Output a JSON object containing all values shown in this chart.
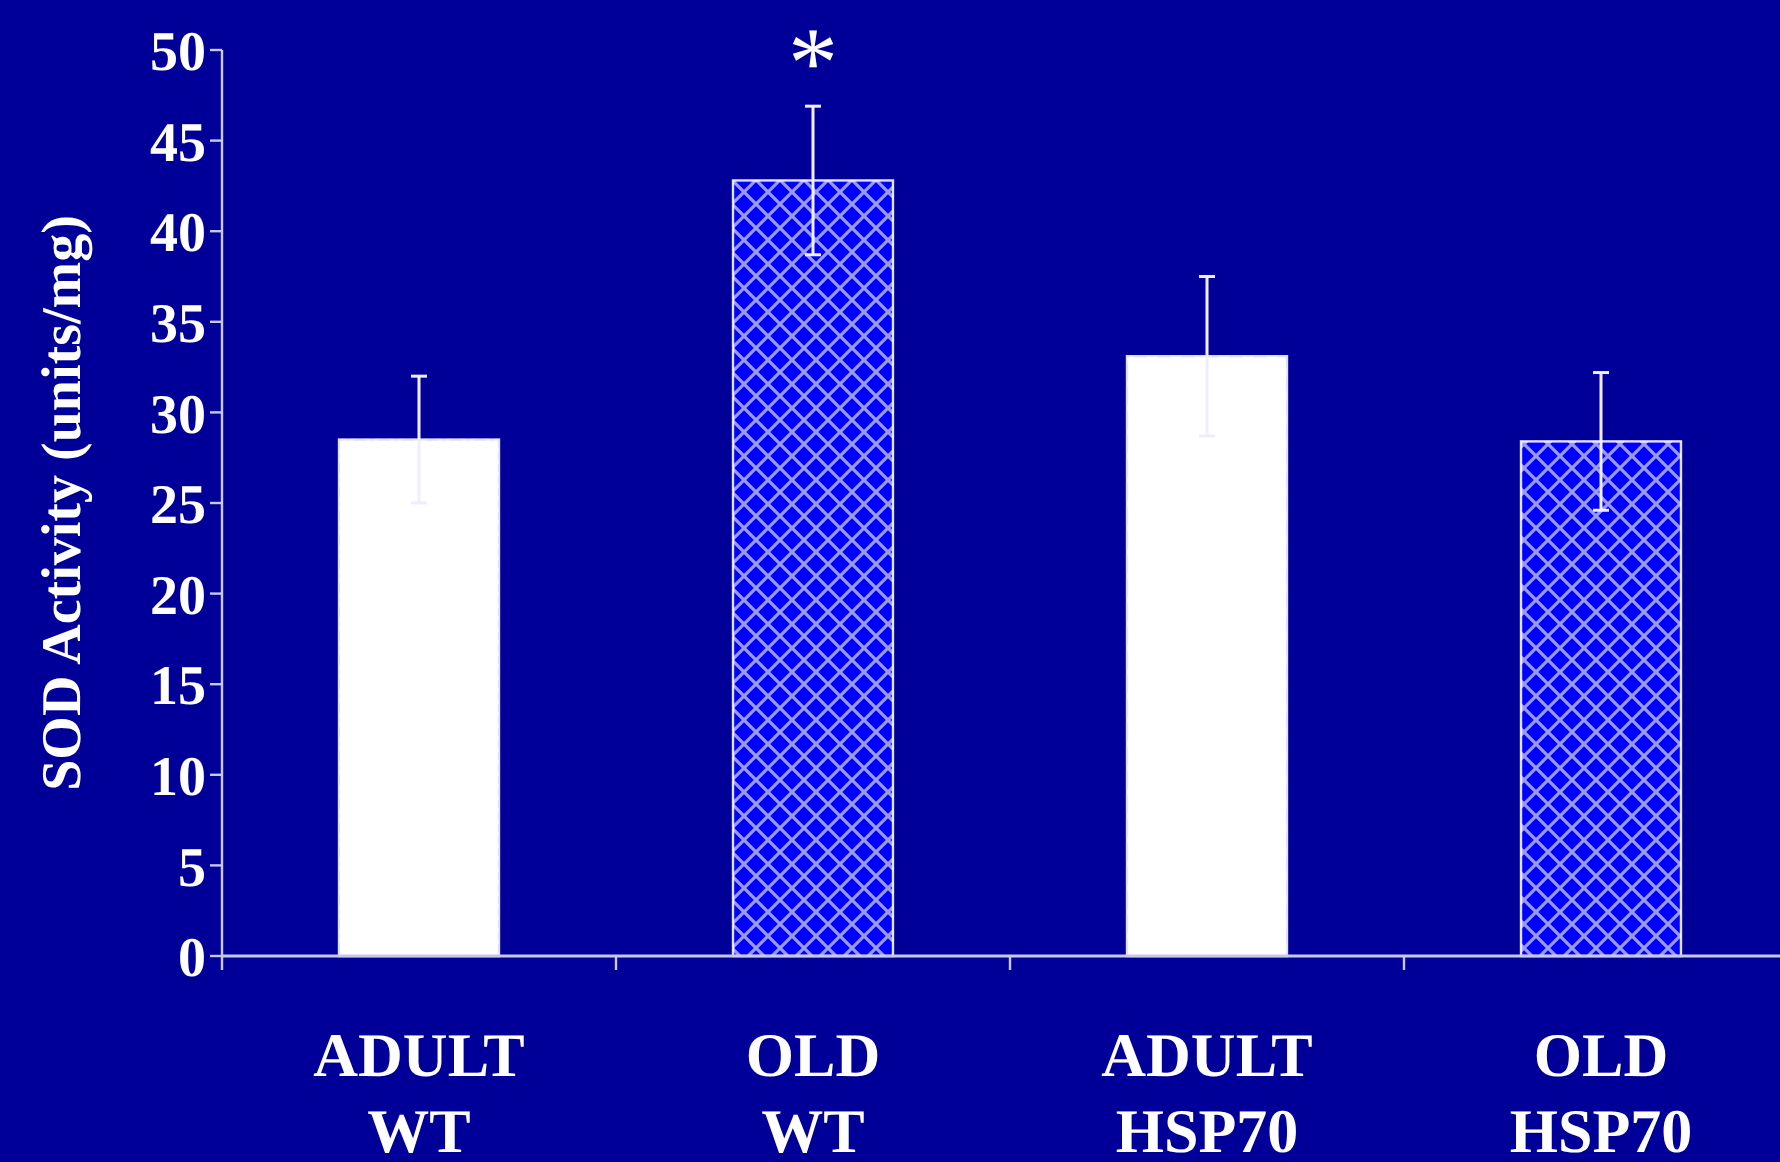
{
  "chart_data": {
    "type": "bar",
    "ylabel": "SOD Activity (units/mg)",
    "categories": [
      "ADULT WT",
      "OLD WT",
      "ADULT HSP70",
      "OLD HSP70"
    ],
    "values": [
      28.5,
      42.8,
      33.1,
      28.4
    ],
    "colors": [
      "#ffffff",
      "#0000ff",
      "#ffffff",
      "#0000ff"
    ],
    "errors": [
      3.5,
      4.1,
      4.4,
      3.8
    ],
    "ylim": [
      0,
      50
    ],
    "yticks": [
      0,
      5,
      10,
      15,
      20,
      25,
      30,
      35,
      40,
      45,
      50
    ],
    "annotations": [
      "*"
    ]
  }
}
